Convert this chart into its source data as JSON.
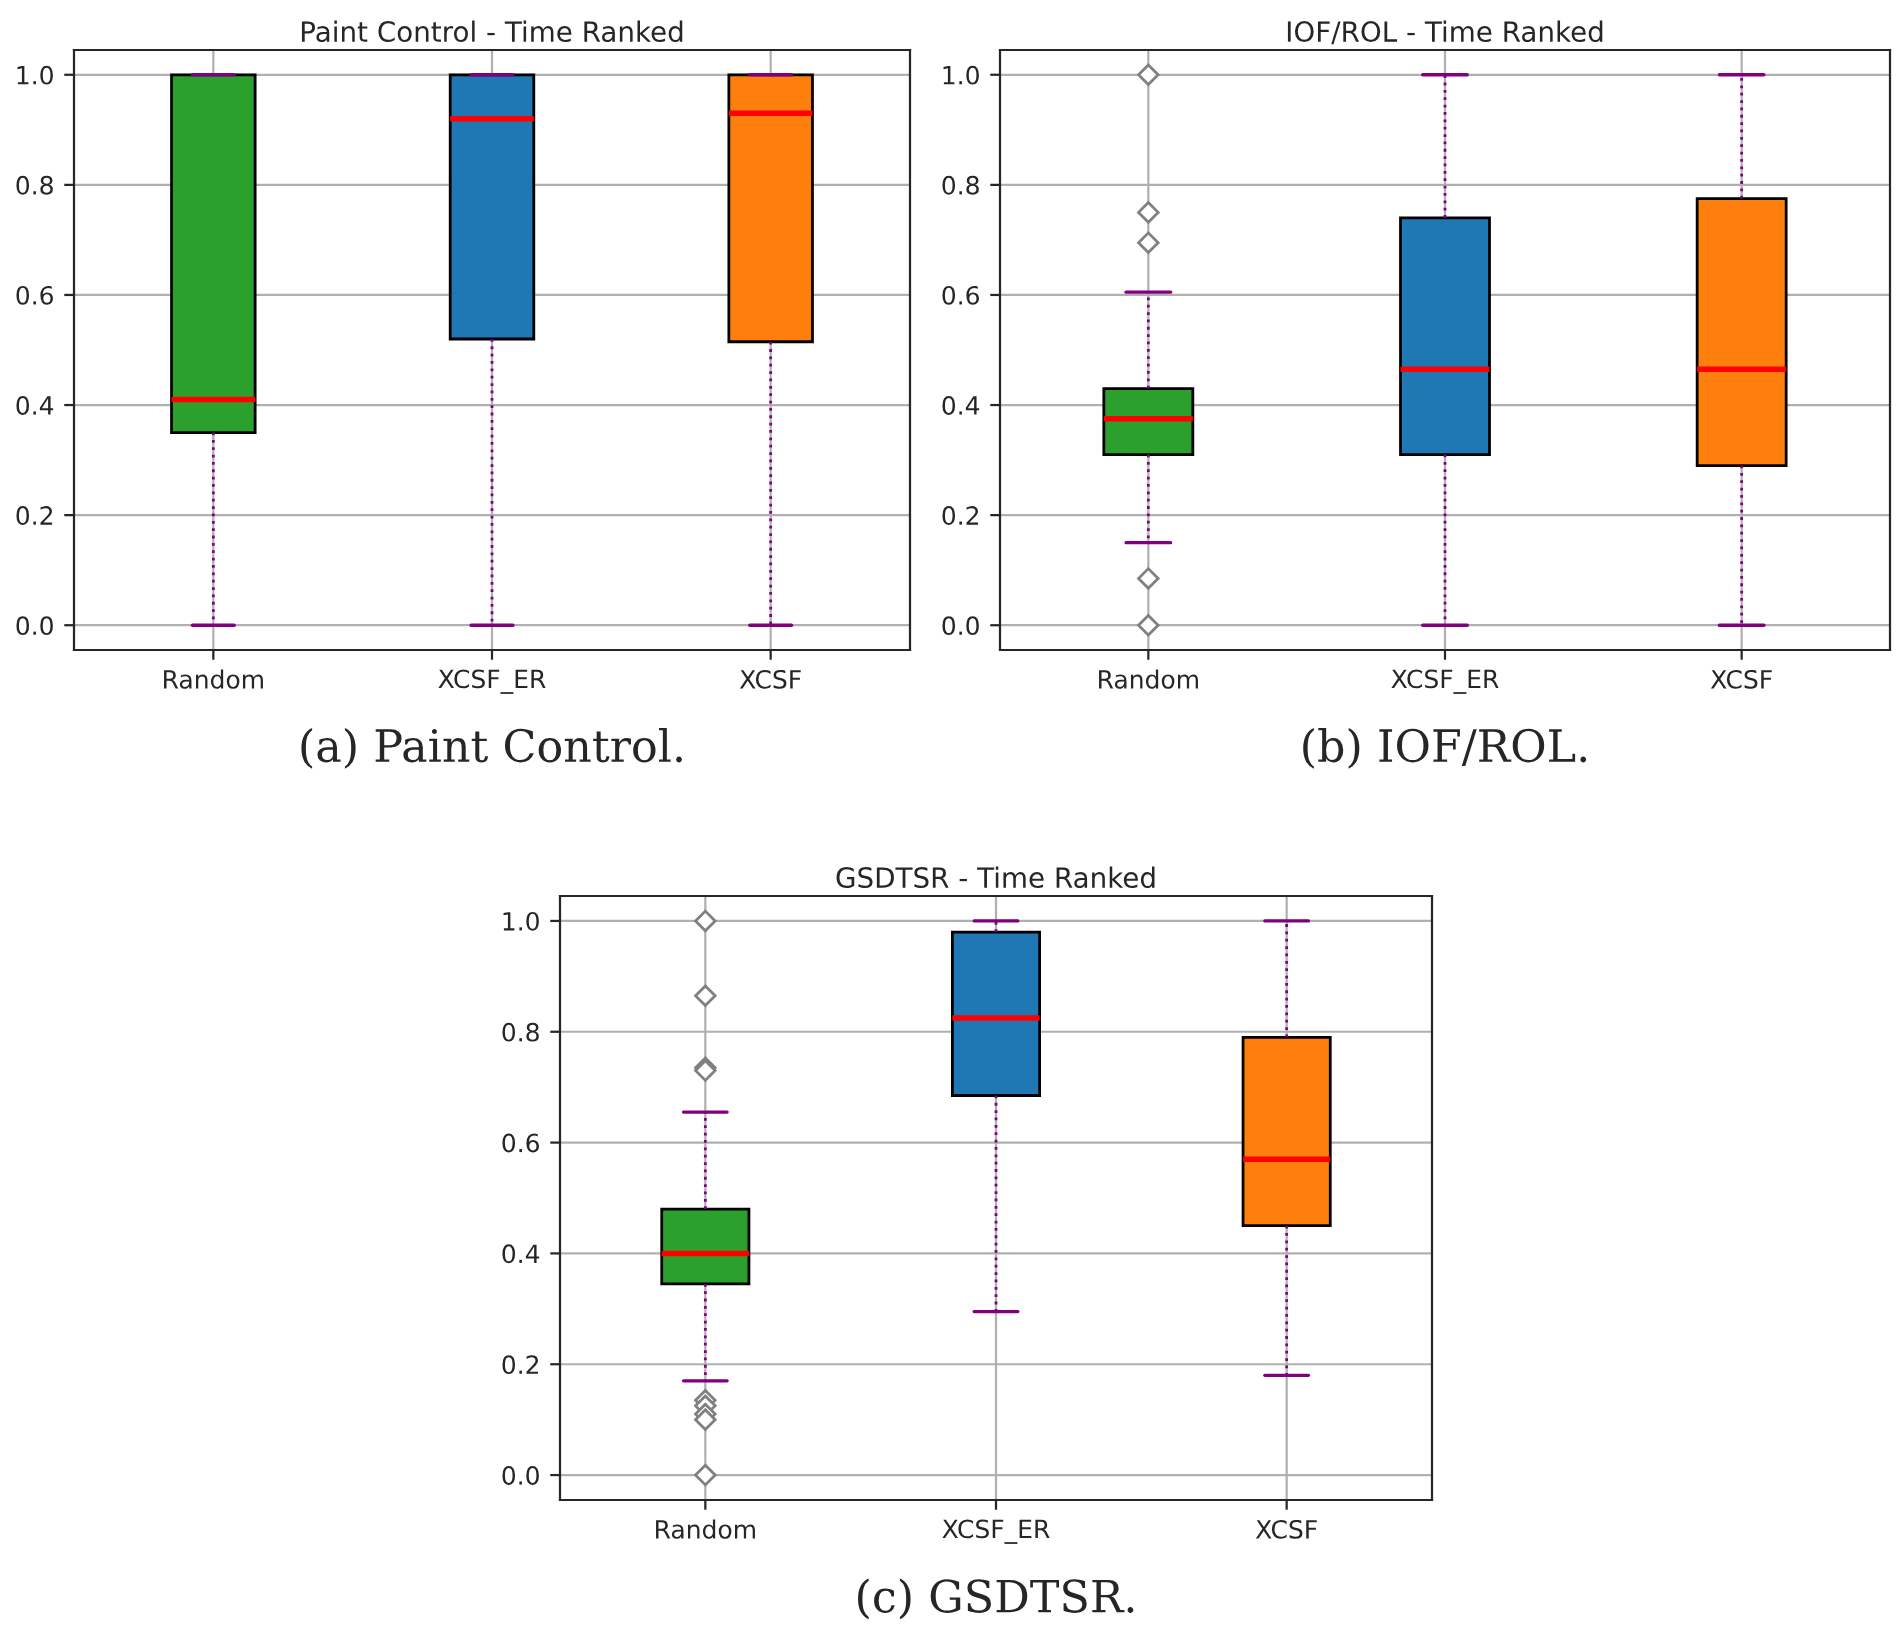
{
  "chart_data": [
    {
      "type": "box",
      "title": "Paint Control - Time Ranked",
      "categories": [
        "Random",
        "XCSF_ER",
        "XCSF"
      ],
      "colors": [
        "#2ca02c",
        "#1f77b4",
        "#ff7f0e"
      ],
      "boxes": [
        {
          "low": 0,
          "q1": 0.35,
          "median": 0.41,
          "q3": 1.0,
          "high": 1.0
        },
        {
          "low": 0,
          "q1": 0.52,
          "median": 0.92,
          "q3": 1.0,
          "high": 1.0
        },
        {
          "low": 0,
          "q1": 0.515,
          "median": 0.93,
          "q3": 1.0,
          "high": 1.0
        }
      ],
      "ylim": [
        -0.045,
        1.045
      ],
      "yticks": [
        {
          "value": 0,
          "label": "0.0"
        },
        {
          "value": 0.2,
          "label": "0.2"
        },
        {
          "value": 0.4,
          "label": "0.4"
        },
        {
          "value": 0.6,
          "label": "0.6"
        },
        {
          "value": 0.8,
          "label": "0.8"
        },
        {
          "value": 1.0,
          "label": "1.0"
        }
      ],
      "grid": true,
      "marker": "diamond",
      "annotations": [
        "(a) Paint Control."
      ]
    },
    {
      "type": "box",
      "title": "IOF/ROL - Time Ranked",
      "categories": [
        "Random",
        "XCSF_ER",
        "XCSF"
      ],
      "colors": [
        "#2ca02c",
        "#1f77b4",
        "#ff7f0e"
      ],
      "boxes": [
        {
          "low": 0.15,
          "q1": 0.31,
          "median": 0.375,
          "q3": 0.43,
          "high": 0.605,
          "outliers": [
            1.0,
            0.75,
            0.695,
            0.085,
            0.0
          ]
        },
        {
          "low": 0,
          "q1": 0.31,
          "median": 0.465,
          "q3": 0.74,
          "high": 1.0
        },
        {
          "low": 0,
          "q1": 0.29,
          "median": 0.465,
          "q3": 0.775,
          "high": 1.0
        }
      ],
      "ylim": [
        -0.045,
        1.045
      ],
      "yticks": [
        {
          "value": 0,
          "label": "0.0"
        },
        {
          "value": 0.2,
          "label": "0.2"
        },
        {
          "value": 0.4,
          "label": "0.4"
        },
        {
          "value": 0.6,
          "label": "0.6"
        },
        {
          "value": 0.8,
          "label": "0.8"
        },
        {
          "value": 1.0,
          "label": "1.0"
        }
      ],
      "grid": true,
      "marker": "diamond",
      "annotations": [
        "(b) IOF/ROL."
      ]
    },
    {
      "type": "box",
      "title": "GSDTSR - Time Ranked",
      "categories": [
        "Random",
        "XCSF_ER",
        "XCSF"
      ],
      "colors": [
        "#2ca02c",
        "#1f77b4",
        "#ff7f0e"
      ],
      "boxes": [
        {
          "low": 0.17,
          "q1": 0.345,
          "median": 0.4,
          "q3": 0.48,
          "high": 0.655,
          "outliers": [
            1.0,
            0.865,
            0.735,
            0.73,
            0.135,
            0.125,
            0.11,
            0.1,
            0.0
          ]
        },
        {
          "low": 0.295,
          "q1": 0.685,
          "median": 0.825,
          "q3": 0.98,
          "high": 1.0
        },
        {
          "low": 0.18,
          "q1": 0.45,
          "median": 0.57,
          "q3": 0.79,
          "high": 1.0
        }
      ],
      "ylim": [
        -0.045,
        1.045
      ],
      "yticks": [
        {
          "value": 0,
          "label": "0.0"
        },
        {
          "value": 0.2,
          "label": "0.2"
        },
        {
          "value": 0.4,
          "label": "0.4"
        },
        {
          "value": 0.6,
          "label": "0.6"
        },
        {
          "value": 0.8,
          "label": "0.8"
        },
        {
          "value": 1.0,
          "label": "1.0"
        }
      ],
      "grid": true,
      "marker": "diamond",
      "annotations": [
        "(c) GSDTSR."
      ]
    }
  ]
}
